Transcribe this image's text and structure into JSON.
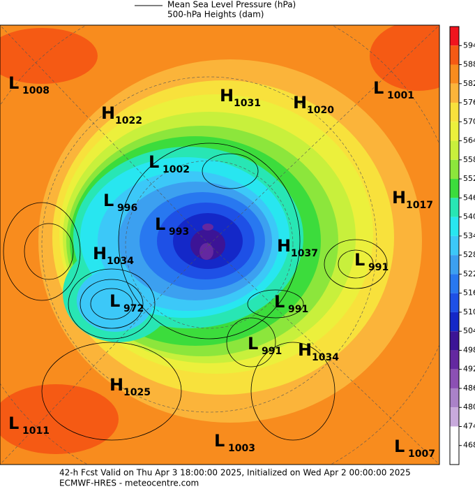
{
  "legend": {
    "items": [
      "Mean Sea Level Pressure (hPa)",
      "500-hPa Heights (dam)"
    ]
  },
  "colorbar": {
    "ticks": [
      594,
      588,
      582,
      576,
      570,
      564,
      558,
      552,
      546,
      540,
      534,
      528,
      522,
      516,
      510,
      504,
      498,
      492,
      486,
      480,
      474,
      468
    ],
    "colors": [
      "#f0141e",
      "#f55a14",
      "#f88c1e",
      "#fbb43a",
      "#f8e13c",
      "#ecf03c",
      "#c8f03c",
      "#8ce63c",
      "#3cdc3c",
      "#28e6b4",
      "#28e6f0",
      "#3cc8f8",
      "#3ca0f0",
      "#2878f0",
      "#1e50e6",
      "#1428c8",
      "#3c1496",
      "#6428a0",
      "#8c50b4",
      "#aa82c8",
      "#c8aadc",
      "#ffffff"
    ]
  },
  "centers": [
    {
      "type": "L",
      "pressure": 1008
    },
    {
      "type": "H",
      "pressure": 1022
    },
    {
      "type": "H",
      "pressure": 1031
    },
    {
      "type": "H",
      "pressure": 1020
    },
    {
      "type": "L",
      "pressure": 1001
    },
    {
      "type": "L",
      "pressure": 1002
    },
    {
      "type": "L",
      "pressure": 996
    },
    {
      "type": "H",
      "pressure": 1017
    },
    {
      "type": "L",
      "pressure": 993
    },
    {
      "type": "H",
      "pressure": 1034
    },
    {
      "type": "H",
      "pressure": 1037
    },
    {
      "type": "L",
      "pressure": 991
    },
    {
      "type": "L",
      "pressure": 972
    },
    {
      "type": "L",
      "pressure": 991
    },
    {
      "type": "L",
      "pressure": 991
    },
    {
      "type": "H",
      "pressure": 1034
    },
    {
      "type": "H",
      "pressure": 1025
    },
    {
      "type": "L",
      "pressure": 1011
    },
    {
      "type": "L",
      "pressure": 1003
    },
    {
      "type": "L",
      "pressure": 1007
    }
  ],
  "footer": [
    "42-h Fcst Valid on Thu Apr  3 18:00:00 2025, Initialized on Wed Apr  2 00:00:00 2025",
    "ECMWF-HRES - meteocentre.com"
  ]
}
